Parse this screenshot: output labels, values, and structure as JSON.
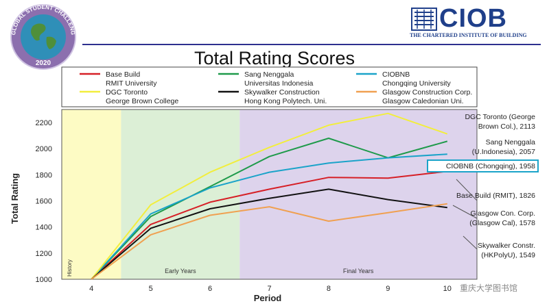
{
  "header": {
    "badge_text": "GLOBAL STUDENT CHALLENGE",
    "badge_year": "2020",
    "logo_text": "CIOB",
    "logo_subtitle": "THE CHARTERED INSTITUTE OF BUILDING",
    "watermark": "重庆大学图书馆"
  },
  "chart_data": {
    "type": "line",
    "title": "Total Rating Scores",
    "xlabel": "Period",
    "ylabel": "Total Rating",
    "x": [
      4,
      5,
      6,
      7,
      8,
      9,
      10
    ],
    "ylim": [
      1000,
      2300
    ],
    "yticks": [
      1000,
      1200,
      1400,
      1600,
      1800,
      2000,
      2200
    ],
    "regions": [
      {
        "label": "History",
        "from": 3.5,
        "to": 4.5,
        "color": "#fdfbc4"
      },
      {
        "label": "Early Years",
        "from": 4.5,
        "to": 6.5,
        "color": "#dcefd6"
      },
      {
        "label": "Final Years",
        "from": 6.5,
        "to": 10.5,
        "color": "#ddd3ec"
      }
    ],
    "series": [
      {
        "name": "Base Build",
        "team": "RMIT University",
        "color": "#d61f26",
        "values": [
          1000,
          1420,
          1590,
          1690,
          1780,
          1775,
          1826
        ],
        "end_label": [
          "Base Build (RMIT), 1826"
        ]
      },
      {
        "name": "Sang Nenggala",
        "team": "Universitas Indonesia",
        "color": "#1e9a4a",
        "values": [
          1000,
          1480,
          1710,
          1940,
          2080,
          1930,
          2057
        ],
        "end_label": [
          "Sang Nenggala",
          "(U.Indonesia), 2057"
        ]
      },
      {
        "name": "CIOBNB",
        "team": "Chongqing University",
        "color": "#1aa3c9",
        "values": [
          1000,
          1500,
          1700,
          1820,
          1890,
          1930,
          1958
        ],
        "end_label": [
          "CIOBNB (Chongqing), 1958"
        ]
      },
      {
        "name": "DGC Toronto",
        "team": "George Brown College",
        "color": "#f2ee3c",
        "values": [
          1000,
          1570,
          1820,
          2010,
          2180,
          2270,
          2113
        ],
        "end_label": [
          "DGC Toronto  (George",
          "Brown Col.), 2113"
        ]
      },
      {
        "name": "Skywalker  Construction",
        "team": "Hong Kong Polytech. Uni.",
        "color": "#111111",
        "values": [
          1000,
          1390,
          1540,
          1620,
          1690,
          1610,
          1549
        ],
        "end_label": [
          "Skywalker Constr.",
          "(HKPolyU), 1549"
        ]
      },
      {
        "name": "Glasgow Construction Corp.",
        "team": "Glasgow Caledonian Uni.",
        "color": "#f0a050",
        "values": [
          1000,
          1340,
          1490,
          1555,
          1445,
          1510,
          1578
        ],
        "end_label": [
          "Glasgow Con. Corp.",
          "(Glasgow Cal), 1578"
        ]
      }
    ],
    "highlighted_series": "CIOBNB"
  }
}
